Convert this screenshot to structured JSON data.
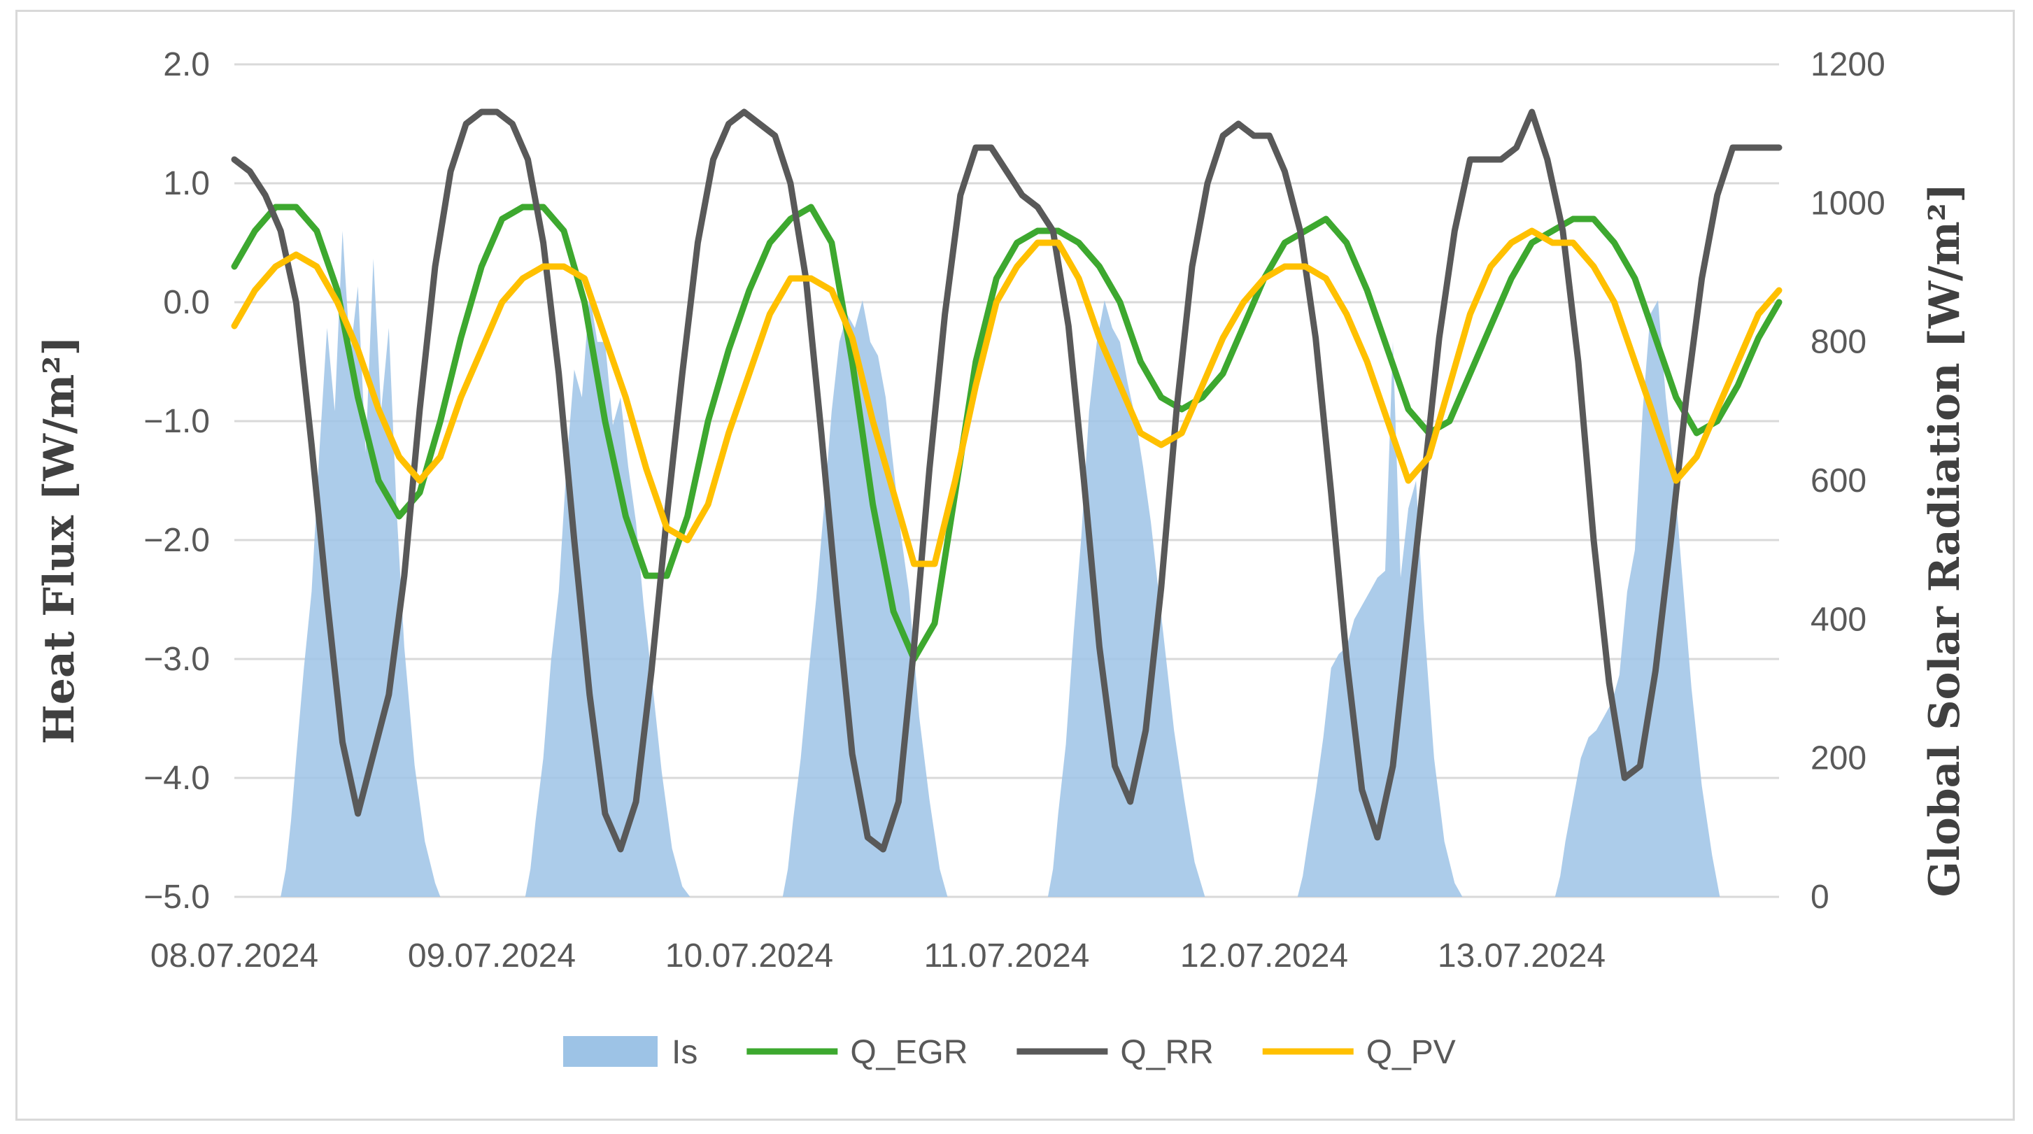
{
  "chart_data": {
    "type": "line",
    "title": "",
    "xlabel": "",
    "ylabel": "Heat Flux [W/m²]",
    "y2label": "Global Solar Radiation [W/m²]",
    "ylim": [
      -5.0,
      2.0
    ],
    "y2lim": [
      0,
      1200
    ],
    "y_ticks": [
      "2.0",
      "1.0",
      "0.0",
      "−1.0",
      "−2.0",
      "−3.0",
      "−4.0",
      "−5.0"
    ],
    "y2_ticks": [
      "1200",
      "1000",
      "800",
      "600",
      "400",
      "200",
      "0"
    ],
    "x_range_days": [
      0,
      6.0
    ],
    "x_ticks": [
      "08.07.2024",
      "09.07.2024",
      "10.07.2024",
      "11.07.2024",
      "12.07.2024",
      "13.07.2024"
    ],
    "grid": true,
    "legend_position": "bottom",
    "series_colors": {
      "Is": "#9DC3E6",
      "Q_EGR": "#3DA82F",
      "Q_RR": "#595959",
      "Q_PV": "#FFC000"
    },
    "series": [
      {
        "name": "Is",
        "type": "area",
        "axis": "right",
        "x": [
          0.18,
          0.2,
          0.22,
          0.24,
          0.27,
          0.3,
          0.33,
          0.36,
          0.39,
          0.42,
          0.45,
          0.48,
          0.51,
          0.54,
          0.57,
          0.6,
          0.63,
          0.66,
          0.7,
          0.74,
          0.78,
          0.8,
          1.13,
          1.15,
          1.17,
          1.2,
          1.23,
          1.26,
          1.29,
          1.32,
          1.35,
          1.38,
          1.41,
          1.44,
          1.47,
          1.5,
          1.53,
          1.56,
          1.59,
          1.62,
          1.66,
          1.7,
          1.74,
          1.77,
          2.13,
          2.15,
          2.17,
          2.2,
          2.23,
          2.26,
          2.29,
          2.32,
          2.35,
          2.38,
          2.41,
          2.44,
          2.47,
          2.5,
          2.53,
          2.56,
          2.59,
          2.62,
          2.66,
          2.7,
          2.74,
          2.77,
          3.16,
          3.18,
          3.2,
          3.23,
          3.26,
          3.29,
          3.32,
          3.35,
          3.38,
          3.41,
          3.44,
          3.47,
          3.5,
          3.53,
          3.56,
          3.59,
          3.62,
          3.65,
          3.69,
          3.73,
          3.77,
          4.13,
          4.15,
          4.17,
          4.2,
          4.23,
          4.26,
          4.29,
          4.32,
          4.35,
          4.38,
          4.41,
          4.44,
          4.47,
          4.5,
          4.53,
          4.56,
          4.59,
          4.62,
          4.66,
          4.7,
          4.74,
          4.77,
          5.13,
          5.15,
          5.17,
          5.2,
          5.23,
          5.26,
          5.29,
          5.32,
          5.35,
          5.38,
          5.41,
          5.44,
          5.47,
          5.5,
          5.53,
          5.56,
          5.59,
          5.62,
          5.66,
          5.7,
          5.74,
          5.77
        ],
        "values": [
          0,
          40,
          110,
          200,
          330,
          440,
          640,
          820,
          700,
          960,
          780,
          880,
          640,
          920,
          700,
          820,
          560,
          360,
          190,
          80,
          20,
          0,
          0,
          40,
          110,
          200,
          340,
          440,
          620,
          760,
          720,
          870,
          800,
          800,
          680,
          720,
          620,
          540,
          420,
          320,
          180,
          70,
          15,
          0,
          0,
          40,
          110,
          200,
          320,
          430,
          560,
          700,
          800,
          840,
          820,
          860,
          800,
          780,
          720,
          620,
          520,
          440,
          260,
          140,
          40,
          0,
          0,
          40,
          120,
          220,
          380,
          520,
          700,
          800,
          860,
          820,
          800,
          740,
          690,
          620,
          540,
          440,
          340,
          240,
          140,
          50,
          0,
          0,
          30,
          80,
          150,
          230,
          330,
          350,
          360,
          400,
          420,
          440,
          460,
          470,
          800,
          460,
          560,
          600,
          400,
          200,
          80,
          20,
          0,
          0,
          30,
          80,
          140,
          200,
          230,
          240,
          260,
          280,
          320,
          440,
          500,
          700,
          840,
          860,
          720,
          620,
          480,
          300,
          160,
          60,
          0
        ]
      },
      {
        "name": "Q_EGR",
        "axis": "left",
        "x": [
          0.0,
          0.08,
          0.16,
          0.24,
          0.32,
          0.4,
          0.48,
          0.56,
          0.64,
          0.72,
          0.8,
          0.88,
          0.96,
          1.04,
          1.12,
          1.2,
          1.28,
          1.36,
          1.44,
          1.52,
          1.6,
          1.68,
          1.76,
          1.84,
          1.92,
          2.0,
          2.08,
          2.16,
          2.24,
          2.32,
          2.4,
          2.48,
          2.56,
          2.64,
          2.72,
          2.8,
          2.88,
          2.96,
          3.04,
          3.12,
          3.2,
          3.28,
          3.36,
          3.44,
          3.52,
          3.6,
          3.68,
          3.76,
          3.84,
          3.92,
          4.0,
          4.08,
          4.16,
          4.24,
          4.32,
          4.4,
          4.48,
          4.56,
          4.64,
          4.72,
          4.8,
          4.88,
          4.96,
          5.04,
          5.12,
          5.2,
          5.28,
          5.36,
          5.44,
          5.52,
          5.6,
          5.68,
          5.76,
          5.84,
          5.92,
          6.0
        ],
        "values": [
          0.3,
          0.6,
          0.8,
          0.8,
          0.6,
          0.1,
          -0.8,
          -1.5,
          -1.8,
          -1.6,
          -1.0,
          -0.3,
          0.3,
          0.7,
          0.8,
          0.8,
          0.6,
          0.0,
          -1.0,
          -1.8,
          -2.3,
          -2.3,
          -1.8,
          -1.0,
          -0.4,
          0.1,
          0.5,
          0.7,
          0.8,
          0.5,
          -0.5,
          -1.7,
          -2.6,
          -3.0,
          -2.7,
          -1.6,
          -0.5,
          0.2,
          0.5,
          0.6,
          0.6,
          0.5,
          0.3,
          0.0,
          -0.5,
          -0.8,
          -0.9,
          -0.8,
          -0.6,
          -0.2,
          0.2,
          0.5,
          0.6,
          0.7,
          0.5,
          0.1,
          -0.4,
          -0.9,
          -1.1,
          -1.0,
          -0.6,
          -0.2,
          0.2,
          0.5,
          0.6,
          0.7,
          0.7,
          0.5,
          0.2,
          -0.3,
          -0.8,
          -1.1,
          -1.0,
          -0.7,
          -0.3,
          0.0
        ]
      },
      {
        "name": "Q_RR",
        "axis": "left",
        "x": [
          0.0,
          0.06,
          0.12,
          0.18,
          0.24,
          0.3,
          0.36,
          0.42,
          0.48,
          0.54,
          0.6,
          0.66,
          0.72,
          0.78,
          0.84,
          0.9,
          0.96,
          1.02,
          1.08,
          1.14,
          1.2,
          1.26,
          1.32,
          1.38,
          1.44,
          1.5,
          1.56,
          1.62,
          1.68,
          1.74,
          1.8,
          1.86,
          1.92,
          1.98,
          2.04,
          2.1,
          2.16,
          2.22,
          2.28,
          2.34,
          2.4,
          2.46,
          2.52,
          2.58,
          2.64,
          2.7,
          2.76,
          2.82,
          2.88,
          2.94,
          3.0,
          3.06,
          3.12,
          3.18,
          3.24,
          3.3,
          3.36,
          3.42,
          3.48,
          3.54,
          3.6,
          3.66,
          3.72,
          3.78,
          3.84,
          3.9,
          3.96,
          4.02,
          4.08,
          4.14,
          4.2,
          4.26,
          4.32,
          4.38,
          4.44,
          4.5,
          4.56,
          4.62,
          4.68,
          4.74,
          4.8,
          4.86,
          4.92,
          4.98,
          5.04,
          5.1,
          5.16,
          5.22,
          5.28,
          5.34,
          5.4,
          5.46,
          5.52,
          5.58,
          5.64,
          5.7,
          5.76,
          5.82,
          5.88,
          5.94,
          6.0
        ],
        "values": [
          1.2,
          1.1,
          0.9,
          0.6,
          0.0,
          -1.2,
          -2.5,
          -3.7,
          -4.3,
          -3.8,
          -3.3,
          -2.3,
          -0.9,
          0.3,
          1.1,
          1.5,
          1.6,
          1.6,
          1.5,
          1.2,
          0.5,
          -0.6,
          -2.0,
          -3.3,
          -4.3,
          -4.6,
          -4.2,
          -3.1,
          -1.8,
          -0.6,
          0.5,
          1.2,
          1.5,
          1.6,
          1.5,
          1.4,
          1.0,
          0.2,
          -1.1,
          -2.5,
          -3.8,
          -4.5,
          -4.6,
          -4.2,
          -2.9,
          -1.4,
          -0.1,
          0.9,
          1.3,
          1.3,
          1.1,
          0.9,
          0.8,
          0.6,
          -0.2,
          -1.5,
          -2.9,
          -3.9,
          -4.2,
          -3.6,
          -2.4,
          -0.9,
          0.3,
          1.0,
          1.4,
          1.5,
          1.4,
          1.4,
          1.1,
          0.6,
          -0.3,
          -1.6,
          -3.0,
          -4.1,
          -4.5,
          -3.9,
          -2.7,
          -1.5,
          -0.3,
          0.6,
          1.2,
          1.2,
          1.2,
          1.3,
          1.6,
          1.2,
          0.6,
          -0.5,
          -2.0,
          -3.2,
          -4.0,
          -3.9,
          -3.1,
          -2.0,
          -0.8,
          0.2,
          0.9,
          1.3,
          1.3,
          1.3,
          1.3
        ]
      },
      {
        "name": "Q_PV",
        "axis": "left",
        "x": [
          0.0,
          0.08,
          0.16,
          0.24,
          0.32,
          0.4,
          0.48,
          0.56,
          0.64,
          0.72,
          0.8,
          0.88,
          0.96,
          1.04,
          1.12,
          1.2,
          1.28,
          1.36,
          1.44,
          1.52,
          1.6,
          1.68,
          1.76,
          1.84,
          1.92,
          2.0,
          2.08,
          2.16,
          2.24,
          2.32,
          2.4,
          2.48,
          2.56,
          2.64,
          2.72,
          2.8,
          2.88,
          2.96,
          3.04,
          3.12,
          3.2,
          3.28,
          3.36,
          3.44,
          3.52,
          3.6,
          3.68,
          3.76,
          3.84,
          3.92,
          4.0,
          4.08,
          4.16,
          4.24,
          4.32,
          4.4,
          4.48,
          4.56,
          4.64,
          4.72,
          4.8,
          4.88,
          4.96,
          5.04,
          5.12,
          5.2,
          5.28,
          5.36,
          5.44,
          5.52,
          5.6,
          5.68,
          5.76,
          5.84,
          5.92,
          6.0
        ],
        "values": [
          -0.2,
          0.1,
          0.3,
          0.4,
          0.3,
          0.0,
          -0.4,
          -0.9,
          -1.3,
          -1.5,
          -1.3,
          -0.8,
          -0.4,
          0.0,
          0.2,
          0.3,
          0.3,
          0.2,
          -0.3,
          -0.8,
          -1.4,
          -1.9,
          -2.0,
          -1.7,
          -1.1,
          -0.6,
          -0.1,
          0.2,
          0.2,
          0.1,
          -0.3,
          -1.0,
          -1.6,
          -2.2,
          -2.2,
          -1.5,
          -0.7,
          0.0,
          0.3,
          0.5,
          0.5,
          0.2,
          -0.3,
          -0.7,
          -1.1,
          -1.2,
          -1.1,
          -0.7,
          -0.3,
          0.0,
          0.2,
          0.3,
          0.3,
          0.2,
          -0.1,
          -0.5,
          -1.0,
          -1.5,
          -1.3,
          -0.7,
          -0.1,
          0.3,
          0.5,
          0.6,
          0.5,
          0.5,
          0.3,
          0.0,
          -0.5,
          -1.0,
          -1.5,
          -1.3,
          -0.9,
          -0.5,
          -0.1,
          0.1
        ]
      }
    ]
  }
}
